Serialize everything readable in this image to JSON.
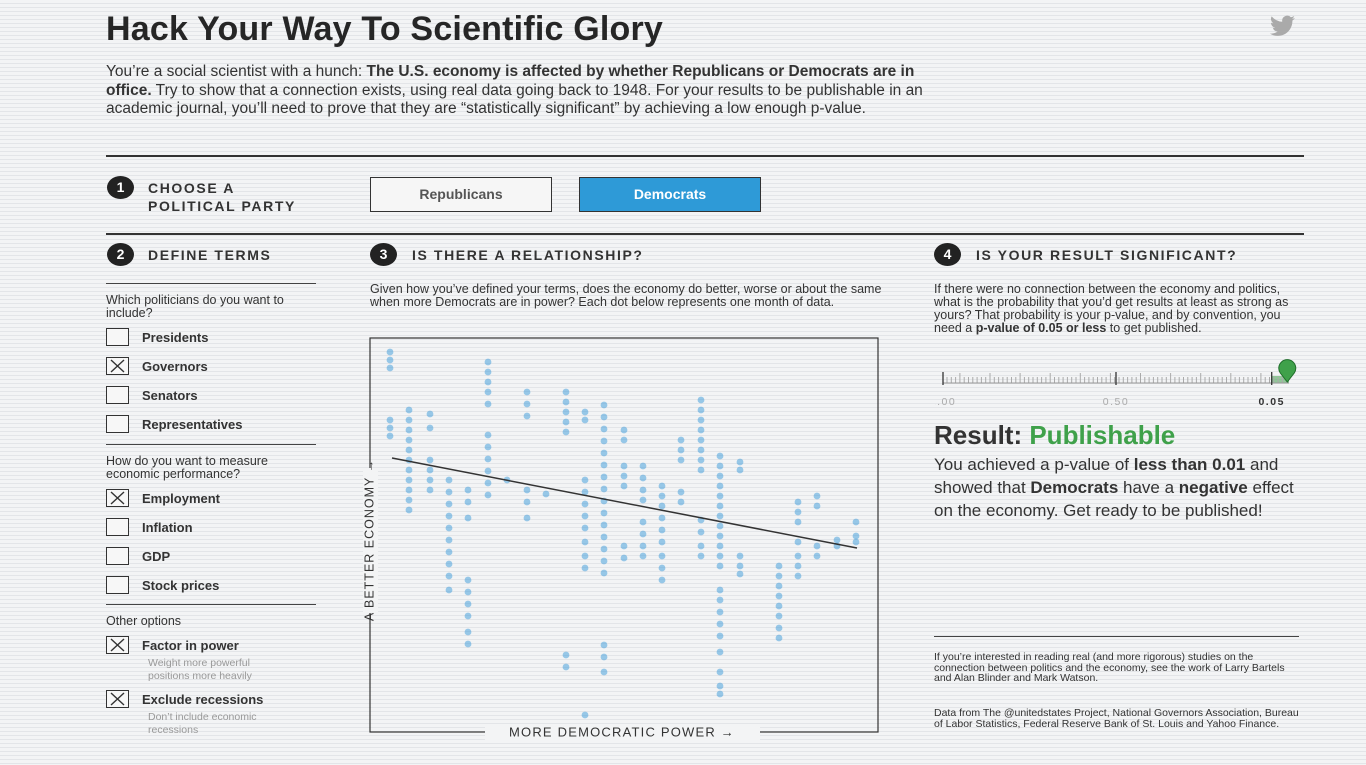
{
  "header": {
    "title": "Hack Your Way To Scientific Glory",
    "intro": [
      "You’re a social scientist with a hunch: ",
      "The U.S. economy is affected by whether Republicans or Democrats are in office.",
      " Try to show that a connection exists, using real data going back to 1948. For your results to be publishable in an academic journal, you’ll need to prove that they are “statistically significant” by achieving a low enough p-value."
    ]
  },
  "step1": {
    "number": "1",
    "label": [
      "CHOOSE A",
      "POLITICAL PARTY"
    ],
    "buttons": [
      {
        "label": "Republicans",
        "selected": false
      },
      {
        "label": "Democrats",
        "selected": true
      }
    ]
  },
  "step2": {
    "number": "2",
    "label": "DEFINE TERMS",
    "groups": [
      {
        "question": "Which politicians do you want to include?",
        "options": [
          {
            "label": "Presidents",
            "checked": false
          },
          {
            "label": "Governors",
            "checked": true
          },
          {
            "label": "Senators",
            "checked": false
          },
          {
            "label": "Representatives",
            "checked": false
          }
        ]
      },
      {
        "question": "How do you want to measure economic performance?",
        "options": [
          {
            "label": "Employment",
            "checked": true
          },
          {
            "label": "Inflation",
            "checked": false
          },
          {
            "label": "GDP",
            "checked": false
          },
          {
            "label": "Stock prices",
            "checked": false
          }
        ]
      },
      {
        "question": "Other options",
        "options": [
          {
            "label": "Factor in power",
            "checked": true,
            "note": "Weight more powerful positions more heavily"
          },
          {
            "label": "Exclude recessions",
            "checked": true,
            "note": "Don’t include economic recessions"
          }
        ]
      }
    ]
  },
  "step3": {
    "number": "3",
    "label": "IS THERE A RELATIONSHIP?",
    "description": "Given how you’ve defined your terms, does the economy do better, worse or about the same when more Democrats are in power? Each dot below represents one month of data.",
    "plot": {
      "type": "scatter",
      "x_label": "MORE DEMOCRATIC POWER →",
      "y_label": "A BETTER ECONOMY →",
      "xlim": [
        0,
        508
      ],
      "ylim": [
        0,
        394
      ],
      "color": "#3a9ad9",
      "columns": [
        {
          "x": 20,
          "y": [
            380,
            372,
            364,
            312,
            304,
            296
          ]
        },
        {
          "x": 39,
          "y": [
            322,
            312,
            302,
            292,
            282,
            272,
            262,
            252,
            242,
            232,
            222
          ]
        },
        {
          "x": 60,
          "y": [
            318,
            304,
            272,
            262,
            252,
            242
          ]
        },
        {
          "x": 79,
          "y": [
            252,
            240,
            228,
            216,
            204,
            192,
            180,
            168,
            156,
            142
          ]
        },
        {
          "x": 98,
          "y": [
            242,
            230,
            214,
            152,
            140,
            128,
            116,
            100,
            88
          ]
        },
        {
          "x": 118,
          "y": [
            370,
            360,
            350,
            340,
            328,
            297,
            285,
            273,
            261,
            249,
            237
          ]
        },
        {
          "x": 137,
          "y": [
            252
          ]
        },
        {
          "x": 157,
          "y": [
            340,
            328,
            316,
            242,
            230,
            214
          ]
        },
        {
          "x": 176,
          "y": [
            238
          ]
        },
        {
          "x": 196,
          "y": [
            340,
            330,
            320,
            310,
            300,
            77,
            65
          ]
        },
        {
          "x": 215,
          "y": [
            320,
            312,
            252,
            240,
            228,
            216,
            204,
            190,
            176,
            164,
            17
          ]
        },
        {
          "x": 234,
          "y": [
            327,
            315,
            303,
            291,
            279,
            267,
            255,
            243,
            231,
            219,
            207,
            195,
            183,
            171,
            159,
            87,
            75,
            60
          ]
        },
        {
          "x": 254,
          "y": [
            302,
            292,
            266,
            256,
            246,
            186,
            174
          ]
        },
        {
          "x": 273,
          "y": [
            266,
            254,
            242,
            232,
            210,
            198,
            186,
            176
          ]
        },
        {
          "x": 292,
          "y": [
            246,
            236,
            226,
            214,
            202,
            190,
            176,
            164,
            152
          ]
        },
        {
          "x": 311,
          "y": [
            292,
            282,
            272,
            240,
            230
          ]
        },
        {
          "x": 331,
          "y": [
            332,
            322,
            312,
            302,
            292,
            282,
            272,
            262,
            212,
            200,
            186,
            176
          ]
        },
        {
          "x": 350,
          "y": [
            276,
            266,
            256,
            246,
            236,
            226,
            216,
            206,
            196,
            186,
            176,
            166,
            142,
            132,
            120,
            108,
            96,
            80,
            60,
            46,
            38
          ]
        },
        {
          "x": 370,
          "y": [
            270,
            262,
            176,
            166,
            158
          ]
        },
        {
          "x": 409,
          "y": [
            166,
            156,
            146,
            136,
            126,
            116,
            104,
            94
          ]
        },
        {
          "x": 428,
          "y": [
            230,
            220,
            210,
            190,
            176,
            166,
            156
          ]
        },
        {
          "x": 447,
          "y": [
            236,
            226,
            186,
            176
          ]
        },
        {
          "x": 467,
          "y": [
            192,
            186
          ]
        },
        {
          "x": 486,
          "y": [
            210,
            196,
            190
          ]
        }
      ],
      "trend": {
        "x": [
          22,
          487
        ],
        "y": [
          274,
          184
        ]
      }
    }
  },
  "step4": {
    "number": "4",
    "label": "IS YOUR RESULT SIGNIFICANT?",
    "text": [
      "If there were no connection between the economy and politics, what is the probability that you’d get results at least as strong as yours? That probability is your p-value, and by convention, you need a ",
      "p-value of 0.05 or less",
      " to get published."
    ],
    "slider": {
      "xlim": [
        1,
        0
      ],
      "ticks": [
        {
          "value": 1,
          "label": "1.00"
        },
        {
          "value": 0.5,
          "label": "0.50"
        },
        {
          "value": 0.05,
          "label": "0.05"
        }
      ],
      "threshold": 0.05,
      "p_value": 0.005,
      "color": "#3fa14a"
    },
    "result": {
      "prefix": "Result: ",
      "verdict": "Publishable",
      "verdict_color": "#3fa14a",
      "text": [
        "You achieved a p-value of ",
        "less than 0.01",
        " and showed that ",
        "Democrats",
        " have a ",
        "negative",
        " effect on the economy. Get ready to be published!"
      ]
    }
  },
  "footer": {
    "notes": [
      "If you’re interested in reading real (and more rigorous) studies on the connection between politics and the economy, see the work of Larry Bartels and Alan Blinder and Mark Watson.",
      "Data from The @unitedstates Project, National Governors Association, Bureau of Labor Statistics, Federal Reserve Bank of St. Louis and Yahoo Finance."
    ]
  }
}
